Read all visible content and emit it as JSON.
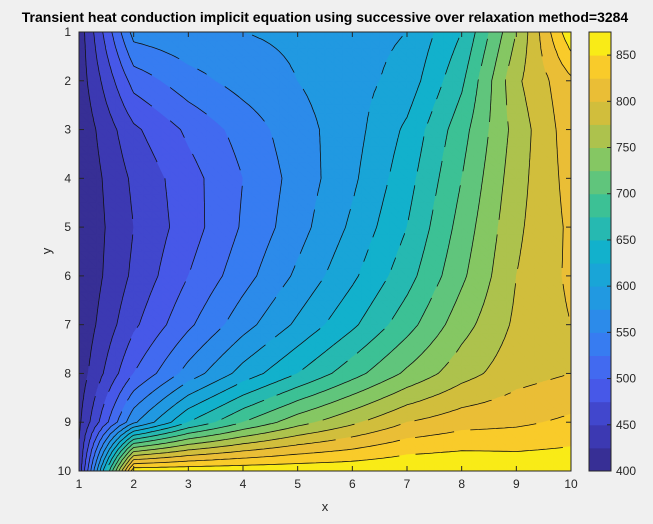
{
  "chart_data": {
    "type": "heatmap",
    "subtype": "filled-contour",
    "title": "Transient heat conduction implicit equation using successive over relaxation method=3284",
    "xlabel": "x",
    "ylabel": "y",
    "xlim": [
      1,
      10
    ],
    "ylim": [
      1,
      10
    ],
    "y_direction": "reversed",
    "x_ticks": [
      "1",
      "2",
      "3",
      "4",
      "5",
      "6",
      "7",
      "8",
      "9",
      "10"
    ],
    "y_ticks": [
      "1",
      "2",
      "3",
      "4",
      "5",
      "6",
      "7",
      "8",
      "9",
      "10"
    ],
    "x": [
      1,
      2,
      3,
      4,
      5,
      6,
      7,
      8,
      9,
      10
    ],
    "y": [
      1,
      2,
      3,
      4,
      5,
      6,
      7,
      8,
      9,
      10
    ],
    "z": [
      [
        410,
        560,
        570,
        575,
        580,
        590,
        600,
        650,
        750,
        870
      ],
      [
        410,
        510,
        540,
        560,
        575,
        590,
        610,
        670,
        770,
        820
      ],
      [
        405,
        470,
        505,
        535,
        565,
        590,
        630,
        690,
        760,
        815
      ],
      [
        403,
        455,
        490,
        525,
        560,
        595,
        640,
        700,
        765,
        810
      ],
      [
        402,
        450,
        488,
        528,
        565,
        605,
        650,
        710,
        770,
        805
      ],
      [
        402,
        455,
        500,
        540,
        580,
        620,
        665,
        720,
        775,
        805
      ],
      [
        405,
        470,
        520,
        565,
        605,
        645,
        690,
        740,
        780,
        800
      ],
      [
        410,
        500,
        560,
        610,
        650,
        690,
        730,
        765,
        790,
        800
      ],
      [
        420,
        570,
        650,
        700,
        740,
        770,
        800,
        815,
        820,
        830
      ],
      [
        430,
        870,
        870,
        870,
        870,
        870,
        875,
        875,
        870,
        870
      ]
    ],
    "levels_step": 25,
    "colorbar": {
      "min": 400,
      "max": 875,
      "ticks": [
        "400",
        "450",
        "500",
        "550",
        "600",
        "650",
        "700",
        "750",
        "800",
        "850"
      ],
      "colormap": "parula"
    },
    "grid": false,
    "legend": "none"
  }
}
